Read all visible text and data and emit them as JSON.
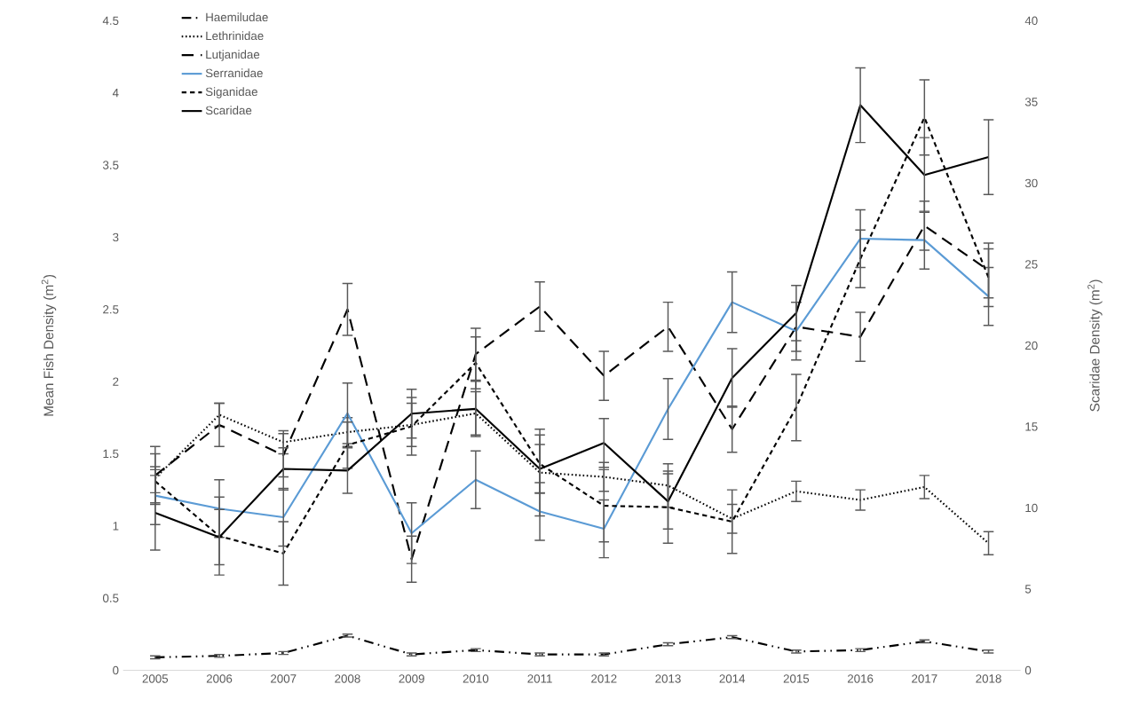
{
  "chart_data": {
    "type": "line",
    "categories": [
      "2005",
      "2006",
      "2007",
      "2008",
      "2009",
      "2010",
      "2011",
      "2012",
      "2013",
      "2014",
      "2015",
      "2016",
      "2017",
      "2018"
    ],
    "ylabel": "Mean Fish Density (m$^{2}$)",
    "y2label": "Scaridae Density (m$^{2}$)",
    "ylim": [
      0,
      4.5
    ],
    "yticks": [
      0,
      0.5,
      1,
      1.5,
      2,
      2.5,
      3,
      3.5,
      4,
      4.5
    ],
    "y2lim": [
      0,
      40
    ],
    "y2ticks": [
      0,
      5,
      10,
      15,
      20,
      25,
      30,
      35,
      40
    ],
    "legend": "top left",
    "grid": false,
    "marker": "none",
    "series": [
      {
        "name": "Haemiludae",
        "color": "#000000",
        "line_style": "dashdotted",
        "values": [
          0.09,
          0.1,
          0.12,
          0.24,
          0.11,
          0.14,
          0.11,
          0.11,
          0.18,
          0.23,
          0.13,
          0.14,
          0.2,
          0.13
        ],
        "errors": [
          0.01,
          0.01,
          0.01,
          0.01,
          0.01,
          0.01,
          0.01,
          0.01,
          0.01,
          0.01,
          0.01,
          0.01,
          0.01,
          0.01
        ]
      },
      {
        "name": "Lethrinidae",
        "color": "#000000",
        "line_style": "dotted",
        "values": [
          1.33,
          1.77,
          1.58,
          1.65,
          1.7,
          1.78,
          1.37,
          1.34,
          1.28,
          1.05,
          1.24,
          1.18,
          1.27,
          0.88
        ],
        "errors": [
          0.17,
          0.08,
          0.08,
          0.1,
          0.15,
          0.15,
          0.3,
          0.1,
          0.15,
          0.1,
          0.07,
          0.07,
          0.08,
          0.08
        ]
      },
      {
        "name": "Lutjanidae",
        "color": "#000000",
        "line_style": "long dashed",
        "values": [
          1.35,
          1.7,
          1.49,
          2.5,
          0.77,
          2.19,
          2.52,
          2.04,
          2.38,
          1.67,
          2.38,
          2.31,
          3.08,
          2.77
        ],
        "errors": [
          0.2,
          0.15,
          0.15,
          0.18,
          0.16,
          0.18,
          0.17,
          0.17,
          0.17,
          0.16,
          0.17,
          0.17,
          0.17,
          0.19
        ]
      },
      {
        "name": "Serranidae",
        "color": "#5b9bd5",
        "line_style": "solid",
        "values": [
          1.21,
          1.12,
          1.06,
          1.78,
          0.95,
          1.32,
          1.1,
          0.98,
          1.81,
          2.55,
          2.35,
          2.99,
          2.98,
          2.59
        ],
        "errors": [
          0.2,
          0.2,
          0.2,
          0.21,
          0.21,
          0.2,
          0.2,
          0.2,
          0.21,
          0.21,
          0.2,
          0.2,
          0.2,
          0.2
        ]
      },
      {
        "name": "Siganidae",
        "color": "#000000",
        "line_style": "dashed",
        "values": [
          1.31,
          0.93,
          0.81,
          1.56,
          1.69,
          2.13,
          1.43,
          1.14,
          1.13,
          1.03,
          1.82,
          2.85,
          3.83,
          2.72
        ],
        "errors": [
          0.08,
          0.27,
          0.22,
          0.16,
          0.2,
          0.18,
          0.2,
          0.25,
          0.25,
          0.22,
          0.23,
          0.2,
          0.26,
          0.2
        ]
      },
      {
        "name": "Scaridae",
        "color": "#000000",
        "line_style": "solid",
        "axis": "y2",
        "values": [
          9.7,
          8.2,
          12.4,
          12.3,
          15.8,
          16.1,
          12.4,
          14.0,
          10.4,
          18.0,
          22.0,
          34.8,
          30.5,
          31.6
        ],
        "errors": [
          2.3,
          1.7,
          1.3,
          1.4,
          1.5,
          1.7,
          1.5,
          1.5,
          1.7,
          1.8,
          1.7,
          2.3,
          2.3,
          2.3
        ]
      }
    ]
  }
}
